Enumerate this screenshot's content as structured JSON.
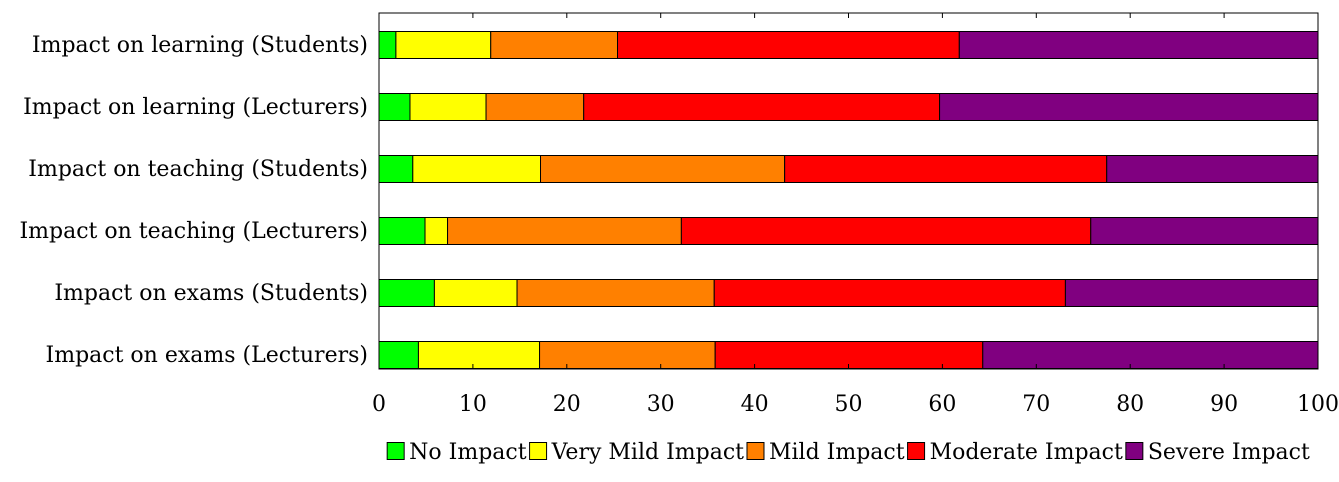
{
  "chart_data": {
    "type": "bar",
    "orientation": "horizontal",
    "stacked": true,
    "categories": [
      "Impact on learning (Students)",
      "Impact on learning (Lecturers)",
      "Impact on teaching (Students)",
      "Impact on teaching (Lecturers)",
      "Impact on exams (Students)",
      "Impact on exams (Lecturers)"
    ],
    "series": [
      {
        "name": "No Impact",
        "color": "#00ff00",
        "values": [
          1.8,
          3.3,
          3.6,
          4.9,
          5.9,
          4.2
        ]
      },
      {
        "name": "Very Mild Impact",
        "color": "#ffff00",
        "values": [
          10.1,
          8.1,
          13.6,
          2.4,
          8.8,
          12.9
        ]
      },
      {
        "name": "Mild Impact",
        "color": "#ff8000",
        "values": [
          13.5,
          10.4,
          26.0,
          24.9,
          21.0,
          18.7
        ]
      },
      {
        "name": "Moderate Impact",
        "color": "#ff0000",
        "values": [
          36.4,
          37.9,
          34.3,
          43.6,
          37.4,
          28.5
        ]
      },
      {
        "name": "Severe Impact",
        "color": "#800080",
        "values": [
          38.2,
          40.3,
          22.5,
          24.2,
          26.9,
          35.7
        ]
      }
    ],
    "xlim": [
      0,
      100
    ],
    "xticks": [
      "0",
      "10",
      "20",
      "30",
      "40",
      "50",
      "60",
      "70",
      "80",
      "90",
      "100"
    ],
    "grid": false,
    "legend_position": "bottom"
  }
}
